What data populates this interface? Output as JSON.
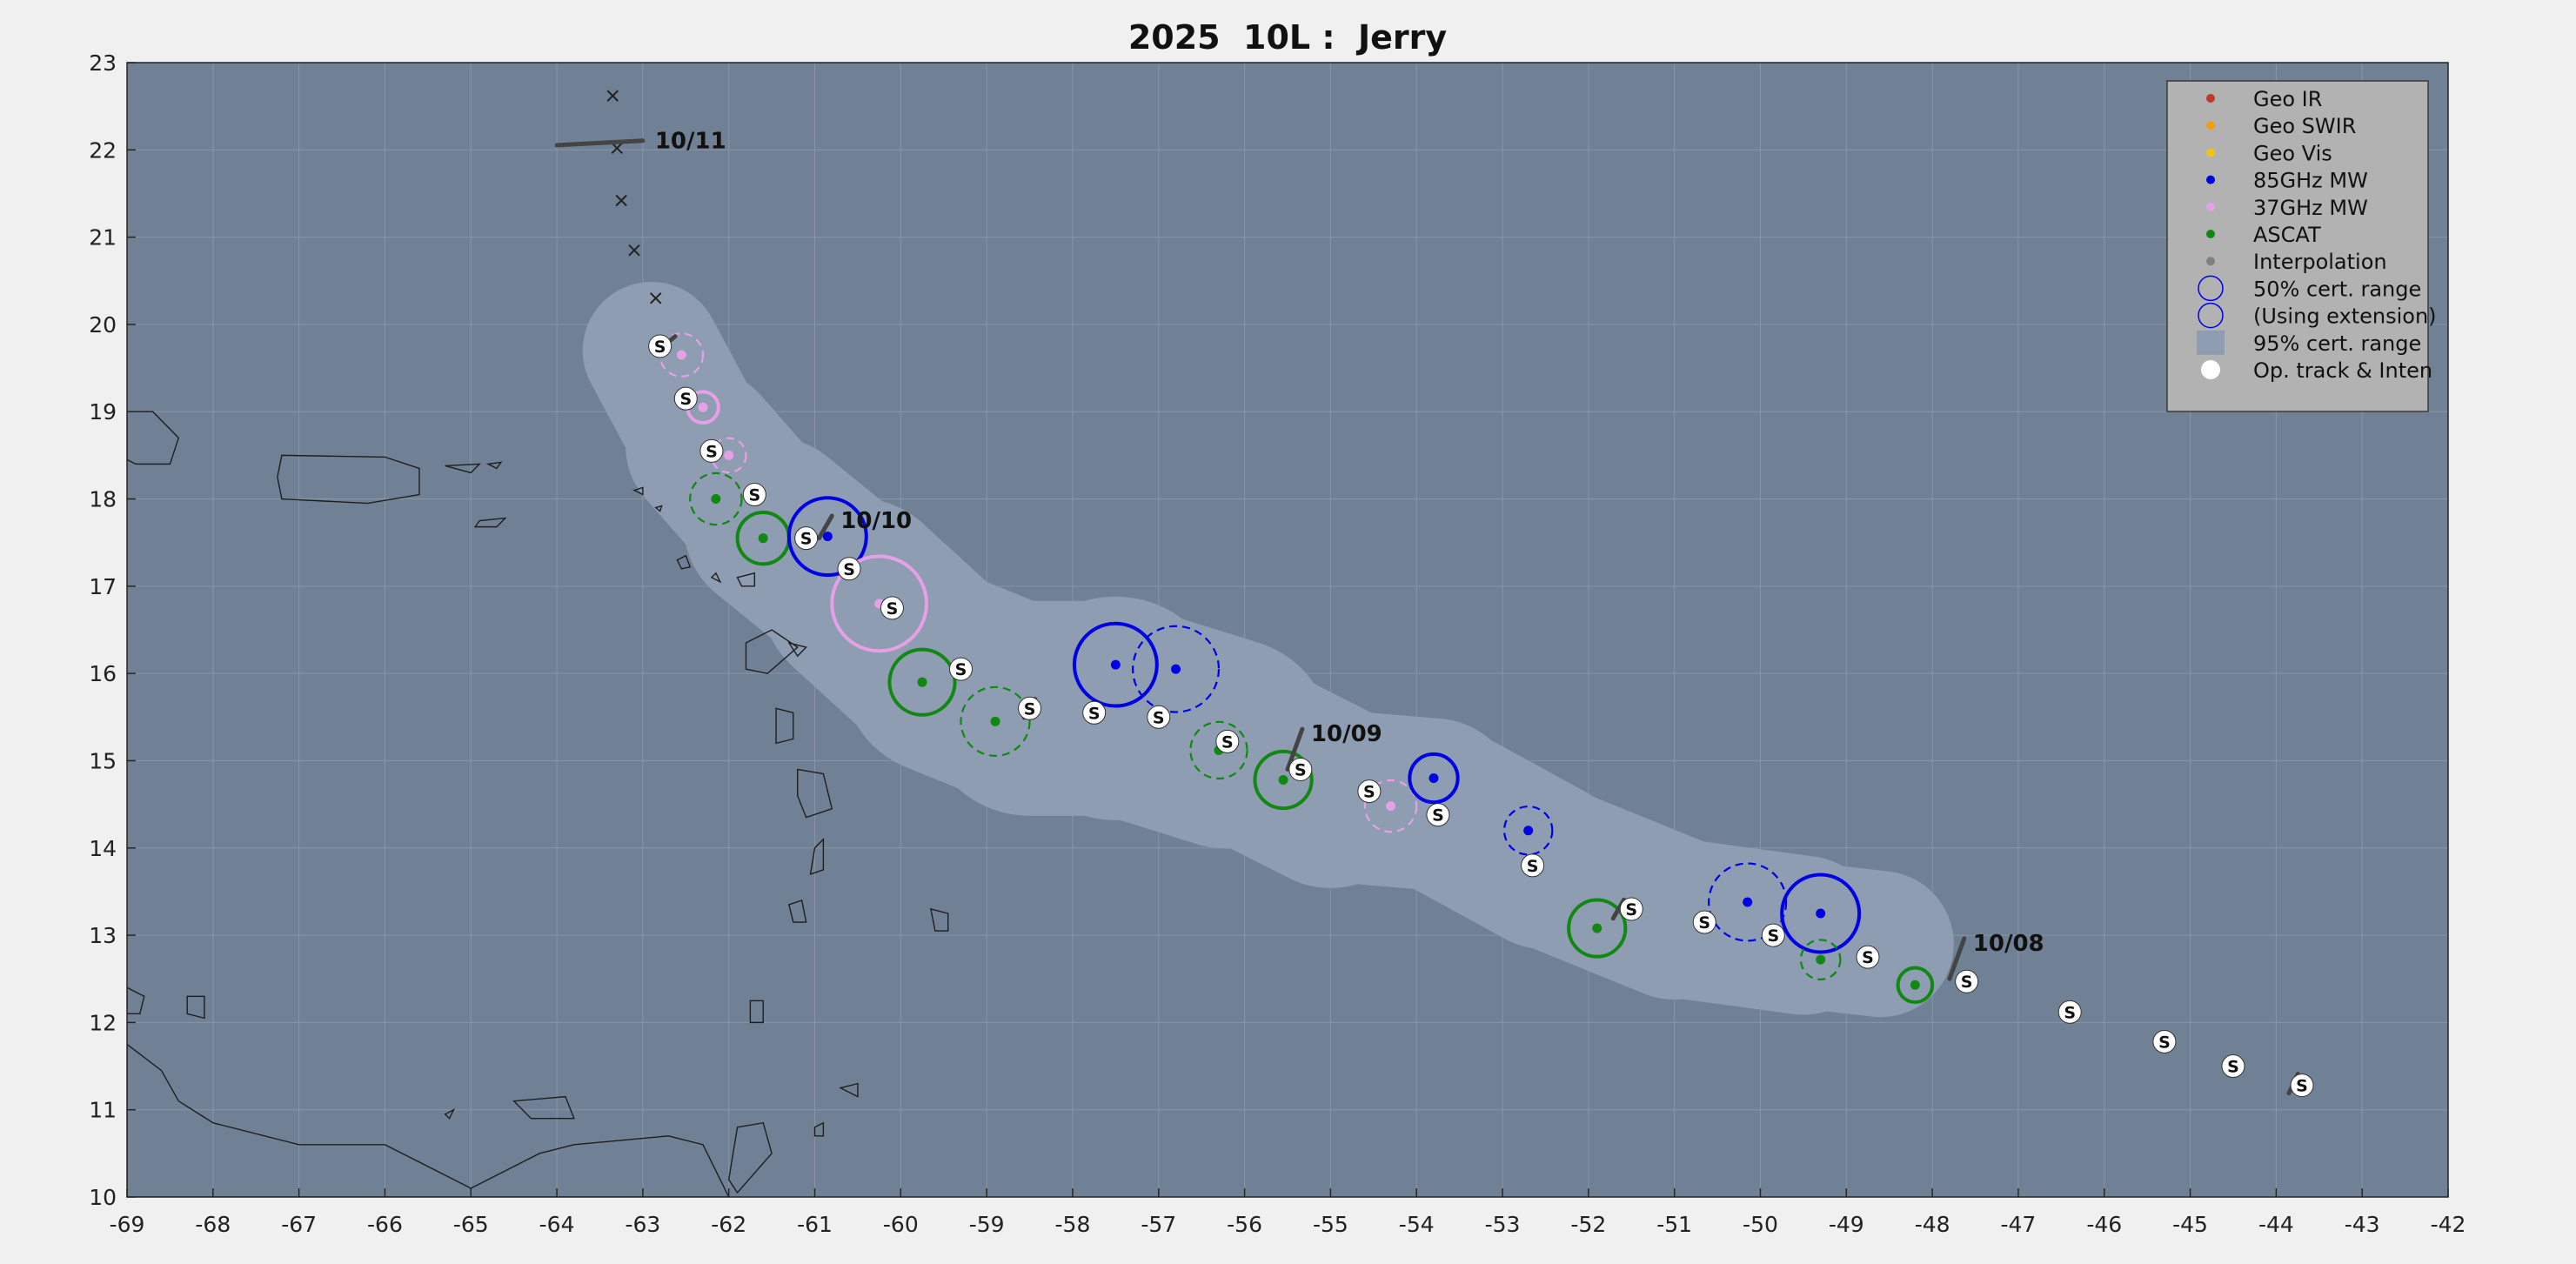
{
  "chart_data": {
    "type": "scatter",
    "title": "2025  10L :  Jerry",
    "xlabel": "",
    "ylabel": "",
    "xlim": [
      -69,
      -42
    ],
    "ylim": [
      10,
      23
    ],
    "x_ticks": [
      -69,
      -68,
      -67,
      -66,
      -65,
      -64,
      -63,
      -62,
      -61,
      -60,
      -59,
      -58,
      -57,
      -56,
      -55,
      -54,
      -53,
      -52,
      -51,
      -50,
      -49,
      -48,
      -47,
      -46,
      -45,
      -44,
      -43,
      -42
    ],
    "y_ticks": [
      10,
      11,
      12,
      13,
      14,
      15,
      16,
      17,
      18,
      19,
      20,
      21,
      22,
      23
    ],
    "grid": true,
    "legend_position": "top-right",
    "colors": {
      "background": "#718195",
      "envelope": "#8e9db2",
      "geo_ir": "#c0392b",
      "geo_swir": "#f39c12",
      "geo_vis": "#f1c40f",
      "mw85": "#0000e6",
      "mw37": "#e6a0e6",
      "ascat": "#118811",
      "interp": "#808080",
      "op_track": "#ffffff"
    },
    "legend": [
      {
        "label": "Geo IR",
        "symbol": "dot",
        "color": "#c0392b"
      },
      {
        "label": "Geo SWIR",
        "symbol": "dot",
        "color": "#f39c12"
      },
      {
        "label": "Geo Vis",
        "symbol": "dot",
        "color": "#f1c40f"
      },
      {
        "label": "85GHz MW",
        "symbol": "dot",
        "color": "#0000e6"
      },
      {
        "label": "37GHz MW",
        "symbol": "dot",
        "color": "#e6a0e6"
      },
      {
        "label": "ASCAT",
        "symbol": "dot",
        "color": "#118811"
      },
      {
        "label": "Interpolation",
        "symbol": "dot",
        "color": "#808080"
      },
      {
        "label": "50% cert. range",
        "symbol": "circle",
        "color": "#0000e6"
      },
      {
        "label": "(Using extension)",
        "symbol": "circle",
        "color": "#0000e6"
      },
      {
        "label": "95% cert. range",
        "symbol": "square",
        "color": "#8e9db2"
      },
      {
        "label": "Op. track & Inten",
        "symbol": "bigdot",
        "color": "#ffffff"
      }
    ],
    "envelope_track": [
      {
        "lon": -62.9,
        "lat": 19.7
      },
      {
        "lon": -62.3,
        "lat": 18.6
      },
      {
        "lon": -61.5,
        "lat": 17.7
      },
      {
        "lon": -60.5,
        "lat": 16.9
      },
      {
        "lon": -59.5,
        "lat": 16.0
      },
      {
        "lon": -58.5,
        "lat": 15.6
      },
      {
        "lon": -57.5,
        "lat": 15.6
      },
      {
        "lon": -56.2,
        "lat": 15.2
      },
      {
        "lon": -55.0,
        "lat": 14.6
      },
      {
        "lon": -53.8,
        "lat": 14.5
      },
      {
        "lon": -52.5,
        "lat": 13.8
      },
      {
        "lon": -51.0,
        "lat": 13.2
      },
      {
        "lon": -49.5,
        "lat": 13.0
      },
      {
        "lon": -48.6,
        "lat": 12.9
      }
    ],
    "envelope_radius_deg": [
      0.75,
      0.85,
      0.95,
      1.1,
      1.15,
      1.2,
      1.3,
      1.15,
      1.0,
      1.0,
      0.95,
      0.95,
      0.9,
      0.8
    ],
    "fixes": [
      {
        "type": "mw37",
        "lon": -62.55,
        "lat": 19.65,
        "r": 0.25,
        "dashed": true
      },
      {
        "type": "mw37",
        "lon": -62.3,
        "lat": 19.05,
        "r": 0.18,
        "dashed": false
      },
      {
        "type": "mw37",
        "lon": -62.0,
        "lat": 18.5,
        "r": 0.2,
        "dashed": true
      },
      {
        "type": "ascat",
        "lon": -62.15,
        "lat": 18.0,
        "r": 0.3,
        "dashed": true
      },
      {
        "type": "ascat",
        "lon": -61.6,
        "lat": 17.55,
        "r": 0.3,
        "dashed": false
      },
      {
        "type": "mw85",
        "lon": -60.85,
        "lat": 17.57,
        "r": 0.45,
        "dashed": false
      },
      {
        "type": "mw37",
        "lon": -60.25,
        "lat": 16.8,
        "r": 0.55,
        "dashed": false
      },
      {
        "type": "ascat",
        "lon": -59.75,
        "lat": 15.9,
        "r": 0.38,
        "dashed": false
      },
      {
        "type": "ascat",
        "lon": -58.9,
        "lat": 15.45,
        "r": 0.4,
        "dashed": true
      },
      {
        "type": "mw85",
        "lon": -57.5,
        "lat": 16.1,
        "r": 0.48,
        "dashed": false
      },
      {
        "type": "mw85",
        "lon": -56.8,
        "lat": 16.05,
        "r": 0.5,
        "dashed": true
      },
      {
        "type": "ascat",
        "lon": -56.3,
        "lat": 15.12,
        "r": 0.33,
        "dashed": true
      },
      {
        "type": "ascat",
        "lon": -55.55,
        "lat": 14.78,
        "r": 0.33,
        "dashed": false
      },
      {
        "type": "mw37",
        "lon": -54.3,
        "lat": 14.48,
        "r": 0.3,
        "dashed": true
      },
      {
        "type": "mw85",
        "lon": -53.8,
        "lat": 14.8,
        "r": 0.28,
        "dashed": false
      },
      {
        "type": "mw85",
        "lon": -52.7,
        "lat": 14.2,
        "r": 0.28,
        "dashed": true
      },
      {
        "type": "ascat",
        "lon": -51.9,
        "lat": 13.08,
        "r": 0.33,
        "dashed": false
      },
      {
        "type": "mw85",
        "lon": -50.15,
        "lat": 13.38,
        "r": 0.45,
        "dashed": true
      },
      {
        "type": "mw85",
        "lon": -49.3,
        "lat": 13.25,
        "r": 0.45,
        "dashed": false
      },
      {
        "type": "ascat",
        "lon": -49.3,
        "lat": 12.72,
        "r": 0.23,
        "dashed": true
      },
      {
        "type": "ascat",
        "lon": -48.2,
        "lat": 12.43,
        "r": 0.2,
        "dashed": false
      }
    ],
    "op_track": [
      {
        "lon": -62.8,
        "lat": 19.75,
        "label": "S"
      },
      {
        "lon": -62.5,
        "lat": 19.15,
        "label": "S"
      },
      {
        "lon": -62.2,
        "lat": 18.55,
        "label": "S"
      },
      {
        "lon": -61.7,
        "lat": 18.05,
        "label": "S"
      },
      {
        "lon": -61.1,
        "lat": 17.55,
        "label": "S"
      },
      {
        "lon": -60.6,
        "lat": 17.2,
        "label": "S"
      },
      {
        "lon": -60.1,
        "lat": 16.75,
        "label": "S"
      },
      {
        "lon": -59.3,
        "lat": 16.05,
        "label": "S"
      },
      {
        "lon": -58.5,
        "lat": 15.6,
        "label": "S"
      },
      {
        "lon": -57.75,
        "lat": 15.55,
        "label": "S"
      },
      {
        "lon": -57.0,
        "lat": 15.5,
        "label": "S"
      },
      {
        "lon": -56.2,
        "lat": 15.22,
        "label": "S"
      },
      {
        "lon": -55.35,
        "lat": 14.9,
        "label": "S"
      },
      {
        "lon": -54.55,
        "lat": 14.65,
        "label": "S"
      },
      {
        "lon": -53.75,
        "lat": 14.38,
        "label": "S"
      },
      {
        "lon": -52.65,
        "lat": 13.8,
        "label": "S"
      },
      {
        "lon": -51.5,
        "lat": 13.3,
        "label": "S"
      },
      {
        "lon": -50.65,
        "lat": 13.15,
        "label": "S"
      },
      {
        "lon": -49.85,
        "lat": 13.0,
        "label": "S"
      },
      {
        "lon": -48.75,
        "lat": 12.75,
        "label": "S"
      },
      {
        "lon": -47.6,
        "lat": 12.47,
        "label": "S"
      },
      {
        "lon": -46.4,
        "lat": 12.12,
        "label": "S"
      },
      {
        "lon": -45.3,
        "lat": 11.78,
        "label": "S"
      },
      {
        "lon": -44.5,
        "lat": 11.5,
        "label": "S"
      },
      {
        "lon": -43.7,
        "lat": 11.28,
        "label": "S"
      }
    ],
    "forecast_points": [
      {
        "lon": -62.85,
        "lat": 20.3
      },
      {
        "lon": -63.1,
        "lat": 20.85
      },
      {
        "lon": -63.25,
        "lat": 21.42
      },
      {
        "lon": -63.3,
        "lat": 22.02
      },
      {
        "lon": -63.35,
        "lat": 22.62
      }
    ],
    "date_markers": [
      {
        "lon": -47.8,
        "lat": 12.5,
        "label": "10/08",
        "len": 0.5,
        "angle": 70
      },
      {
        "lon": -55.5,
        "lat": 14.9,
        "label": "10/09",
        "len": 0.5,
        "angle": 70
      },
      {
        "lon": -60.95,
        "lat": 17.55,
        "label": "10/10",
        "len": 0.3,
        "angle": 60
      },
      {
        "lon": -63.5,
        "lat": 22.08,
        "label": "10/11",
        "len": 1.0,
        "angle": 3
      }
    ],
    "wind_barbs": [
      {
        "lon": -62.7,
        "lat": 19.8,
        "len": 0.2,
        "angle": 40
      },
      {
        "lon": -58.5,
        "lat": 15.6,
        "len": 0.25,
        "angle": 60
      },
      {
        "lon": -51.65,
        "lat": 13.3,
        "len": 0.25,
        "angle": 60
      },
      {
        "lon": -43.8,
        "lat": 11.3,
        "len": 0.25,
        "angle": 65
      }
    ],
    "land_polygons": [
      [
        [
          -69.0,
          19.0
        ],
        [
          -68.7,
          19.0
        ],
        [
          -68.4,
          18.7
        ],
        [
          -68.5,
          18.4
        ],
        [
          -68.9,
          18.4
        ],
        [
          -69.0,
          18.45
        ]
      ],
      [
        [
          -67.2,
          18.5
        ],
        [
          -66.0,
          18.48
        ],
        [
          -65.6,
          18.35
        ],
        [
          -65.6,
          18.05
        ],
        [
          -66.2,
          17.95
        ],
        [
          -67.2,
          18.0
        ],
        [
          -67.25,
          18.25
        ]
      ],
      [
        [
          -65.3,
          18.38
        ],
        [
          -64.9,
          18.4
        ],
        [
          -65.0,
          18.3
        ]
      ],
      [
        [
          -64.8,
          18.4
        ],
        [
          -64.65,
          18.42
        ],
        [
          -64.7,
          18.35
        ]
      ],
      [
        [
          -64.9,
          17.75
        ],
        [
          -64.6,
          17.78
        ],
        [
          -64.7,
          17.68
        ],
        [
          -64.95,
          17.68
        ]
      ],
      [
        [
          -63.1,
          18.1
        ],
        [
          -63.0,
          18.13
        ],
        [
          -63.0,
          18.05
        ]
      ],
      [
        [
          -62.85,
          17.9
        ],
        [
          -62.78,
          17.92
        ],
        [
          -62.8,
          17.86
        ]
      ],
      [
        [
          -62.6,
          17.3
        ],
        [
          -62.5,
          17.35
        ],
        [
          -62.45,
          17.22
        ],
        [
          -62.55,
          17.2
        ]
      ],
      [
        [
          -62.2,
          17.1
        ],
        [
          -62.15,
          17.15
        ],
        [
          -62.1,
          17.05
        ]
      ],
      [
        [
          -61.9,
          17.1
        ],
        [
          -61.7,
          17.15
        ],
        [
          -61.7,
          17.0
        ],
        [
          -61.85,
          17.0
        ]
      ],
      [
        [
          -61.8,
          16.35
        ],
        [
          -61.5,
          16.5
        ],
        [
          -61.2,
          16.3
        ],
        [
          -61.55,
          16.0
        ],
        [
          -61.8,
          16.05
        ]
      ],
      [
        [
          -61.3,
          16.35
        ],
        [
          -61.1,
          16.3
        ],
        [
          -61.2,
          16.2
        ]
      ],
      [
        [
          -61.45,
          15.6
        ],
        [
          -61.25,
          15.55
        ],
        [
          -61.25,
          15.25
        ],
        [
          -61.45,
          15.2
        ]
      ],
      [
        [
          -61.2,
          14.9
        ],
        [
          -60.9,
          14.85
        ],
        [
          -60.8,
          14.45
        ],
        [
          -61.1,
          14.35
        ],
        [
          -61.2,
          14.6
        ]
      ],
      [
        [
          -61.0,
          14.0
        ],
        [
          -60.9,
          14.1
        ],
        [
          -60.9,
          13.75
        ],
        [
          -61.05,
          13.7
        ]
      ],
      [
        [
          -61.3,
          13.35
        ],
        [
          -61.15,
          13.4
        ],
        [
          -61.1,
          13.15
        ],
        [
          -61.25,
          13.15
        ]
      ],
      [
        [
          -59.65,
          13.3
        ],
        [
          -59.45,
          13.25
        ],
        [
          -59.45,
          13.05
        ],
        [
          -59.6,
          13.05
        ]
      ],
      [
        [
          -61.75,
          12.25
        ],
        [
          -61.6,
          12.25
        ],
        [
          -61.6,
          12.0
        ],
        [
          -61.75,
          12.0
        ]
      ],
      [
        [
          -61.0,
          10.8
        ],
        [
          -60.9,
          10.85
        ],
        [
          -60.9,
          10.7
        ],
        [
          -61.0,
          10.7
        ]
      ],
      [
        [
          -61.9,
          10.8
        ],
        [
          -61.6,
          10.85
        ],
        [
          -61.5,
          10.5
        ],
        [
          -61.9,
          10.05
        ],
        [
          -62.0,
          10.2
        ]
      ],
      [
        [
          -60.7,
          11.25
        ],
        [
          -60.5,
          11.3
        ],
        [
          -60.5,
          11.15
        ]
      ],
      [
        [
          -69.0,
          11.75
        ],
        [
          -68.6,
          11.45
        ],
        [
          -68.4,
          11.1
        ],
        [
          -68.0,
          10.85
        ],
        [
          -67.0,
          10.6
        ],
        [
          -66.0,
          10.6
        ],
        [
          -65.0,
          10.1
        ],
        [
          -64.2,
          10.5
        ],
        [
          -63.8,
          10.6
        ],
        [
          -62.7,
          10.7
        ],
        [
          -62.3,
          10.6
        ],
        [
          -62.0,
          10.0
        ],
        [
          -69.0,
          10.0
        ]
      ],
      [
        [
          -64.5,
          11.1
        ],
        [
          -63.9,
          11.15
        ],
        [
          -63.8,
          10.9
        ],
        [
          -64.3,
          10.9
        ]
      ],
      [
        [
          -65.3,
          10.95
        ],
        [
          -65.2,
          11.0
        ],
        [
          -65.25,
          10.9
        ]
      ],
      [
        [
          -68.3,
          12.3
        ],
        [
          -68.1,
          12.3
        ],
        [
          -68.1,
          12.05
        ],
        [
          -68.3,
          12.1
        ]
      ],
      [
        [
          -69.0,
          12.4
        ],
        [
          -68.8,
          12.3
        ],
        [
          -68.85,
          12.1
        ],
        [
          -69.0,
          12.1
        ]
      ]
    ]
  }
}
